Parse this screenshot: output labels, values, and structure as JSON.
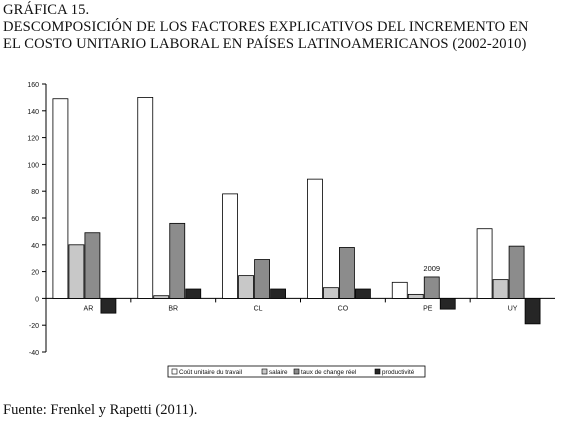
{
  "header": {
    "figure_label": "GRÁFICA 15.",
    "title_line1": "DESCOMPOSICIÓN DE LOS FACTORES EXPLICATIVOS DEL INCREMENTO EN",
    "title_line2": "EL COSTO UNITARIO LABORAL EN PAÍSES LATINOAMERICANOS (2002-2010)"
  },
  "footer": {
    "source": "Fuente: Frenkel y Rapetti (2011)."
  },
  "colors": {
    "series": [
      "#ffffff",
      "#c8c8c8",
      "#8c8c8c",
      "#262626"
    ],
    "stroke": "#000000",
    "frame": "#7a7a7a"
  },
  "chart_data": {
    "type": "bar",
    "title": "",
    "xlabel": "",
    "ylabel": "",
    "ylim": [
      -40,
      160
    ],
    "yticks": [
      -40,
      -20,
      0,
      20,
      40,
      60,
      80,
      100,
      120,
      140,
      160
    ],
    "grid": false,
    "legend_position": "bottom",
    "categories": [
      "AR",
      "BR",
      "CL",
      "CO",
      "PE",
      "UY"
    ],
    "series": [
      {
        "name": "Coût unitaire du travail",
        "values": [
          149,
          150,
          78,
          89,
          12,
          52
        ]
      },
      {
        "name": "salaire",
        "values": [
          40,
          2,
          17,
          8,
          3,
          14
        ]
      },
      {
        "name": "taux de change réel",
        "values": [
          49,
          56,
          29,
          38,
          16,
          39
        ]
      },
      {
        "name": "productivité",
        "values": [
          -11,
          7,
          7,
          7,
          -8,
          -19
        ]
      }
    ],
    "annotations": [
      {
        "text": "2009",
        "category": "PE"
      }
    ]
  }
}
